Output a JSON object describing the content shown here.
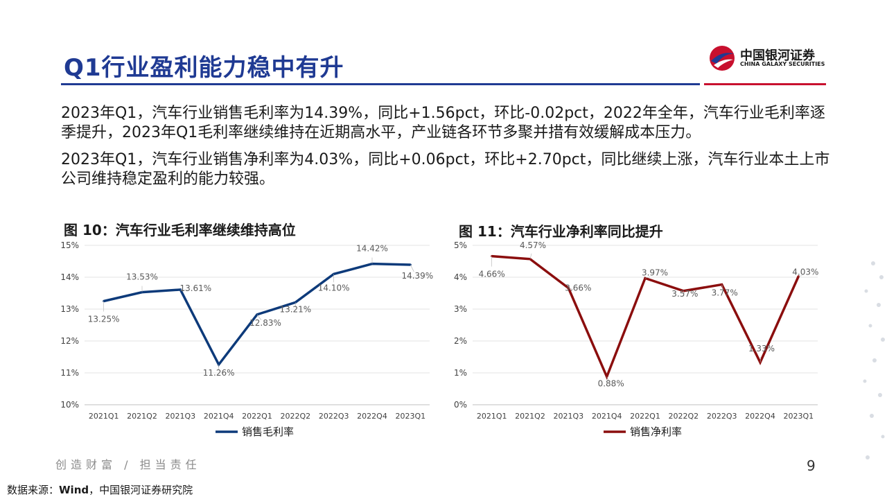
{
  "header": {
    "title": "Q1行业盈利能力稳中有升"
  },
  "logo": {
    "cn": "中国银河证券",
    "en": "CHINA GALAXY SECURITIES"
  },
  "paragraphs": [
    "2023年Q1，汽车行业销售毛利率为14.39%，同比+1.56pct，环比-0.02pct，2022年全年，汽车行业毛利率逐季提升，2023年Q1毛利率继续维持在近期高水平，产业链各环节多聚并措有效缓解成本压力。",
    "2023年Q1，汽车行业销售净利率为4.03%，同比+0.06pct，环比+2.70pct，同比继续上涨，汽车行业本土上市公司维持稳定盈利的能力较强。"
  ],
  "chart_data": [
    {
      "type": "line",
      "title": "图 10：汽车行业毛利率继续维持高位",
      "categories": [
        "2021Q1",
        "2021Q2",
        "2021Q3",
        "2021Q4",
        "2022Q1",
        "2022Q2",
        "2022Q3",
        "2022Q4",
        "2023Q1"
      ],
      "series": [
        {
          "name": "销售毛利率",
          "values": [
            13.25,
            13.53,
            13.61,
            11.26,
            12.83,
            13.21,
            14.1,
            14.42,
            14.39
          ]
        }
      ],
      "data_labels": [
        "13.25%",
        "13.53%",
        "13.61%",
        "11.26%",
        "12.83%",
        "13.21%",
        "14.10%",
        "14.42%",
        "14.39%"
      ],
      "yticks": [
        "10%",
        "11%",
        "12%",
        "13%",
        "14%",
        "15%"
      ],
      "ylim": [
        10,
        15
      ],
      "color": "#0d3a7a",
      "grid": true,
      "legend": "bottom"
    },
    {
      "type": "line",
      "title": "图 11：汽车行业净利率同比提升",
      "categories": [
        "2021Q1",
        "2021Q2",
        "2021Q3",
        "2021Q4",
        "2022Q1",
        "2022Q2",
        "2022Q3",
        "2022Q4",
        "2023Q1"
      ],
      "series": [
        {
          "name": "销售净利率",
          "values": [
            4.66,
            4.57,
            3.66,
            0.88,
            3.97,
            3.57,
            3.77,
            1.33,
            4.03
          ]
        }
      ],
      "data_labels": [
        "4.66%",
        "4.57%",
        "3.66%",
        "0.88%",
        "3.97%",
        "3.57%",
        "3.77%",
        "1.33%",
        "4.03%"
      ],
      "yticks": [
        "0%",
        "1%",
        "2%",
        "3%",
        "4%",
        "5%"
      ],
      "ylim": [
        0,
        5
      ],
      "color": "#8b0e0e",
      "grid": true,
      "legend": "bottom"
    }
  ],
  "footer": {
    "slogan": "创造财富 / 担当责任",
    "page": "9",
    "source_label": "数据来源：",
    "source_bold": "Wind",
    "source_rest": "，中国银河证券研究院"
  },
  "colors": {
    "brand_blue": "#1f3a93",
    "brand_red": "#c8102e"
  }
}
